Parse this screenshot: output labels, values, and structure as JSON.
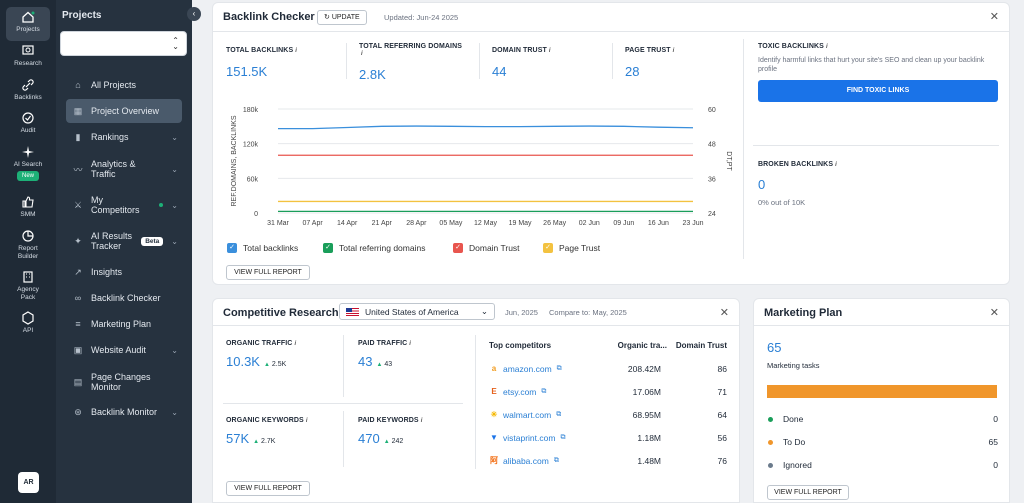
{
  "rail": {
    "items": [
      {
        "label": "Projects",
        "icon": "home-icon"
      },
      {
        "label": "Research",
        "icon": "research-icon"
      },
      {
        "label": "Backlinks",
        "icon": "link-icon"
      },
      {
        "label": "Audit",
        "icon": "audit-icon"
      },
      {
        "label": "AI Search",
        "icon": "sparkle-icon",
        "badge": "New"
      },
      {
        "label": "SMM",
        "icon": "thumbs-up-icon"
      },
      {
        "label": "Report Builder",
        "icon": "report-icon"
      },
      {
        "label": "Agency Pack",
        "icon": "building-icon"
      },
      {
        "label": "API",
        "icon": "api-icon"
      }
    ],
    "avatar": "AR"
  },
  "panel": {
    "title": "Projects",
    "nav": [
      {
        "label": "All Projects",
        "icon": "home-icon"
      },
      {
        "label": "Project Overview",
        "icon": "grid-icon"
      },
      {
        "label": "Rankings",
        "icon": "bar-chart-icon"
      },
      {
        "label": "Analytics & Traffic",
        "icon": "trend-icon"
      },
      {
        "label": "My Competitors",
        "icon": "swords-icon"
      },
      {
        "label": "AI Results Tracker",
        "icon": "sparkle-icon",
        "badge": "Beta"
      },
      {
        "label": "Insights",
        "icon": "trend-icon"
      },
      {
        "label": "Backlink Checker",
        "icon": "link-icon"
      },
      {
        "label": "Marketing Plan",
        "icon": "list-icon"
      },
      {
        "label": "Website Audit",
        "icon": "audit-icon"
      },
      {
        "label": "Page Changes Monitor",
        "icon": "page-icon"
      },
      {
        "label": "Backlink Monitor",
        "icon": "link-icon"
      }
    ]
  },
  "backlink": {
    "title": "Backlink Checker",
    "update_label": "UPDATE",
    "updated": "Updated: Jun-24 2025",
    "kpis": [
      {
        "label": "TOTAL BACKLINKS",
        "value": "151.5K"
      },
      {
        "label": "TOTAL REFERRING DOMAINS",
        "value": "2.8K"
      },
      {
        "label": "DOMAIN TRUST",
        "value": "44"
      },
      {
        "label": "PAGE TRUST",
        "value": "28"
      }
    ],
    "info_mark": "i",
    "view_report": "VIEW FULL REPORT",
    "toxic": {
      "label": "TOXIC BACKLINKS",
      "desc": "Identify harmful links that hurt your site's SEO and clean up your backlink profile",
      "button": "FIND TOXIC LINKS"
    },
    "broken": {
      "label": "BROKEN BACKLINKS",
      "value": "0",
      "sub": "0% out of 10K"
    }
  },
  "chart_data": {
    "type": "line",
    "x": [
      "31 Mar",
      "07 Apr",
      "14 Apr",
      "21 Apr",
      "28 Apr",
      "05 May",
      "12 May",
      "19 May",
      "26 May",
      "02 Jun",
      "09 Jun",
      "16 Jun",
      "23 Jun"
    ],
    "ylabel": "REF.DOMAINS, BACKLINKS",
    "y2label": "DT,PT",
    "yticks": [
      "180k",
      "120k",
      "60k",
      "0"
    ],
    "y2ticks": [
      "60",
      "48",
      "36",
      "24"
    ],
    "ylim": [
      0,
      180000
    ],
    "y2lim": [
      24,
      60
    ],
    "series": [
      {
        "name": "Total backlinks",
        "axis": "left",
        "color": "#3a8fdc",
        "values": [
          146000,
          146000,
          148000,
          150000,
          150500,
          150000,
          149500,
          149500,
          150000,
          150500,
          150000,
          148500,
          147500
        ]
      },
      {
        "name": "Total referring domains",
        "axis": "left",
        "color": "#1a9e5a",
        "values": [
          2800,
          2800,
          2800,
          2800,
          2800,
          2800,
          2800,
          2800,
          2800,
          2800,
          2800,
          2800,
          2800
        ]
      },
      {
        "name": "Domain Trust",
        "axis": "right",
        "color": "#e8554e",
        "values": [
          44,
          44,
          44,
          44,
          44,
          44,
          44,
          44,
          44,
          44,
          44,
          44,
          44
        ]
      },
      {
        "name": "Page Trust",
        "axis": "right",
        "color": "#f3c240",
        "values": [
          28,
          28,
          28,
          28,
          28,
          28,
          28,
          28,
          28,
          28,
          28,
          28,
          28
        ]
      }
    ],
    "grid": true
  },
  "competitive": {
    "title": "Competitive Research",
    "country": "United States of America",
    "date": "Jun, 2025",
    "compare": "Compare to: May, 2025",
    "metrics": [
      {
        "label": "ORGANIC TRAFFIC",
        "value": "10.3K",
        "delta": "2.5K"
      },
      {
        "label": "PAID TRAFFIC",
        "value": "43",
        "delta": "43"
      },
      {
        "label": "ORGANIC KEYWORDS",
        "value": "57K",
        "delta": "2.7K"
      },
      {
        "label": "PAID KEYWORDS",
        "value": "470",
        "delta": "242"
      }
    ],
    "columns": [
      "Top competitors",
      "Organic tra...",
      "Domain Trust"
    ],
    "competitors": [
      {
        "domain": "amazon.com",
        "traffic": "208.42M",
        "trust": "86",
        "favicon": "a",
        "color": "#f29c1f"
      },
      {
        "domain": "etsy.com",
        "traffic": "17.06M",
        "trust": "71",
        "favicon": "E",
        "color": "#e5611c"
      },
      {
        "domain": "walmart.com",
        "traffic": "68.95M",
        "trust": "64",
        "favicon": "✳",
        "color": "#f5b800"
      },
      {
        "domain": "vistaprint.com",
        "traffic": "1.18M",
        "trust": "56",
        "favicon": "▼",
        "color": "#1a73e8"
      },
      {
        "domain": "alibaba.com",
        "traffic": "1.48M",
        "trust": "76",
        "favicon": "阿",
        "color": "#f26b0f"
      }
    ],
    "view_report": "VIEW FULL REPORT"
  },
  "marketing": {
    "title": "Marketing Plan",
    "total": "65",
    "total_label": "Marketing tasks",
    "progress_todo_fraction": 1.0,
    "rows": [
      {
        "label": "Done",
        "value": "0",
        "color": "#1a9e5a"
      },
      {
        "label": "To Do",
        "value": "65",
        "color": "#f0962b"
      },
      {
        "label": "Ignored",
        "value": "0",
        "color": "#6b7b8c"
      }
    ],
    "view_report": "VIEW FULL REPORT"
  },
  "glyphs": {
    "close": "✕",
    "chevron_down": "⌄",
    "collapse": "‹",
    "refresh": "↻",
    "arrow_up": "▲",
    "ext": "⧉",
    "check": "✓"
  }
}
